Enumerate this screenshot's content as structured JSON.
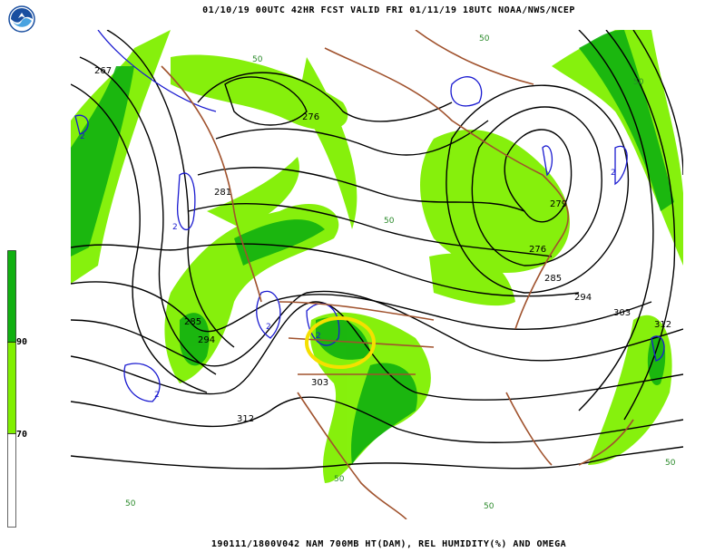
{
  "header": {
    "title": "01/10/19 00UTC  42HR  FCST VALID FRI 01/11/19 18UTC  NOAA/NWS/NCEP",
    "logo": "NOAA"
  },
  "footer": {
    "title": "190111/1800V042 NAM 700MB HT(DAM), REL HUMIDITY(%) AND OMEGA"
  },
  "legend": {
    "levels": [
      {
        "label": "90",
        "color": "#10b010"
      },
      {
        "label": "70",
        "color": "#80f000"
      },
      {
        "label": "",
        "color": "#ffffff"
      }
    ]
  },
  "map": {
    "height_contour_labels": [
      "267",
      "276",
      "281",
      "285",
      "294",
      "303",
      "312",
      "279",
      "276",
      "285",
      "294",
      "303",
      "312"
    ],
    "rh_labels": [
      "50",
      "50",
      "50",
      "50",
      "50",
      "50",
      "50",
      "50"
    ],
    "omega_labels": [
      "2",
      "2",
      "2",
      "2",
      "2",
      "2"
    ],
    "highlight": {
      "shape": "circle",
      "color": "#f5e000"
    },
    "colors": {
      "height_contours": "#000000",
      "omega_contours": "#1a1ad0",
      "rh_70": "#80f000",
      "rh_90": "#10b010",
      "borders": "#a0522d",
      "wind_barbs": "#3a6ea5"
    }
  }
}
